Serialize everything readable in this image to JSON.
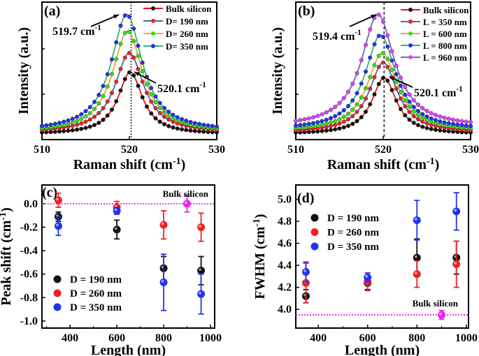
{
  "chart_data": [
    {
      "panel": "(a)",
      "type": "line",
      "xlabel": "Raman shift (cm-1)",
      "ylabel": "Intensity (a.u.)",
      "xlim": [
        510,
        530
      ],
      "ylim": [
        0,
        1
      ],
      "xticks": [
        510,
        520,
        530
      ],
      "yticks_labeled": false,
      "series": [
        {
          "name": "Bulk silicon",
          "center": 520.1,
          "peak": 0.49,
          "base": 0.04,
          "fwhm": 3.4,
          "line": "#e8141b",
          "marker": "#111111"
        },
        {
          "name": "D= 190 nm",
          "center": 520.0,
          "peak": 0.63,
          "base": 0.05,
          "fwhm": 4.0,
          "line": "#3a6fb0",
          "marker": "#ee2222"
        },
        {
          "name": "D= 260 nm",
          "center": 519.8,
          "peak": 0.79,
          "base": 0.05,
          "fwhm": 4.2,
          "line": "#f5a623",
          "marker": "#33dd22"
        },
        {
          "name": "D= 350 nm",
          "center": 519.7,
          "peak": 0.91,
          "base": 0.06,
          "fwhm": 4.3,
          "line": "#3cb371",
          "marker": "#2233ee"
        }
      ],
      "vline": 520.2,
      "annotations": [
        {
          "text": "519.7 cm",
          "sup": "-1"
        },
        {
          "text": "520.1 cm",
          "sup": "-1"
        }
      ]
    },
    {
      "panel": "(b)",
      "type": "line",
      "xlabel": "Raman shift (cm-1)",
      "ylabel": "Intensity (a.u.)",
      "xlim": [
        510,
        530
      ],
      "ylim": [
        0,
        1
      ],
      "xticks": [
        510,
        520,
        530
      ],
      "yticks_labeled": false,
      "series": [
        {
          "name": "Bulk silicon",
          "center": 520.1,
          "peak": 0.45,
          "base": 0.04,
          "fwhm": 3.4,
          "line": "#e8141b",
          "marker": "#111111"
        },
        {
          "name": "L = 350 nm",
          "center": 520.0,
          "peak": 0.56,
          "base": 0.05,
          "fwhm": 3.9,
          "line": "#3a6fb0",
          "marker": "#ee2222"
        },
        {
          "name": "L = 600 nm",
          "center": 519.9,
          "peak": 0.63,
          "base": 0.06,
          "fwhm": 4.2,
          "line": "#f5a623",
          "marker": "#33dd22"
        },
        {
          "name": "L = 800 nm",
          "center": 519.7,
          "peak": 0.76,
          "base": 0.07,
          "fwhm": 4.3,
          "line": "#3cb371",
          "marker": "#2233ee"
        },
        {
          "name": "L = 960 nm",
          "center": 519.4,
          "peak": 0.91,
          "base": 0.09,
          "fwhm": 4.6,
          "line": "#6a6ab0",
          "marker": "#e040fb"
        }
      ],
      "vline": 520.1,
      "annotations": [
        {
          "text": "519.4 cm",
          "sup": "-1"
        },
        {
          "text": "520.1 cm",
          "sup": "-1"
        }
      ]
    },
    {
      "panel": "(c)",
      "type": "scatter",
      "xlabel": "Length (nm)",
      "ylabel": "Peak shift (cm-1)",
      "xlim": [
        280,
        1018
      ],
      "ylim": [
        -1.06,
        0.16
      ],
      "xticks": [
        400,
        600,
        800,
        1000
      ],
      "yticks": [
        0.0,
        -0.2,
        -0.4,
        -0.6,
        -0.8,
        -1.0
      ],
      "ytick_labels": [
        "0.0",
        "-0.2",
        "-0.4",
        "-0.6",
        "-0.8",
        "-1.0"
      ],
      "series": [
        {
          "name": "D = 190 nm",
          "color": "#111111",
          "x": [
            350,
            600,
            800,
            960
          ],
          "y": [
            -0.11,
            -0.22,
            -0.55,
            -0.57
          ],
          "err": [
            0.04,
            0.08,
            0.1,
            0.12
          ]
        },
        {
          "name": "D = 260 nm",
          "color": "#ee2222",
          "x": [
            350,
            600,
            800,
            960
          ],
          "y": [
            0.03,
            -0.03,
            -0.18,
            -0.2
          ],
          "err": [
            0.06,
            0.05,
            0.12,
            0.12
          ]
        },
        {
          "name": "D = 350 nm",
          "color": "#2233ee",
          "x": [
            350,
            600,
            800,
            960
          ],
          "y": [
            -0.19,
            -0.06,
            -0.67,
            -0.77
          ],
          "err": [
            0.08,
            0.03,
            0.24,
            0.17
          ]
        }
      ],
      "bulk": {
        "label": "Bulk silicon",
        "x": 900,
        "y": 0.0,
        "err": 0.07,
        "color": "#ee22ee",
        "hline": 0.0
      }
    },
    {
      "panel": "(d)",
      "type": "scatter",
      "xlabel": "Length (nm)",
      "ylabel": "FWHM (cm-1)",
      "xlim": [
        309,
        1009
      ],
      "ylim": [
        3.83,
        5.13
      ],
      "xticks": [
        400,
        600,
        800,
        1000
      ],
      "yticks": [
        4.0,
        4.2,
        4.4,
        4.6,
        4.8,
        5.0
      ],
      "ytick_labels": [
        "4.0",
        "4.2",
        "4.4",
        "4.6",
        "4.8",
        "5.0"
      ],
      "series": [
        {
          "name": "D = 190 nm",
          "color": "#111111",
          "x": [
            350,
            600,
            800,
            960
          ],
          "y": [
            4.12,
            4.24,
            4.47,
            4.47
          ],
          "err": [
            0.06,
            0.06,
            0.17,
            0.15
          ]
        },
        {
          "name": "D = 260 nm",
          "color": "#ee2222",
          "x": [
            350,
            600,
            800,
            960
          ],
          "y": [
            4.24,
            4.25,
            4.32,
            4.41
          ],
          "err": [
            0.18,
            0.08,
            0.12,
            0.21
          ]
        },
        {
          "name": "D = 350 nm",
          "color": "#2233ee",
          "x": [
            350,
            600,
            800,
            960
          ],
          "y": [
            4.34,
            4.29,
            4.81,
            4.89
          ],
          "err": [
            0.09,
            0.04,
            0.18,
            0.17
          ]
        }
      ],
      "bulk": {
        "label": "Bulk silicon",
        "x": 900,
        "y": 3.95,
        "err": 0.04,
        "color": "#ee22ee",
        "hline": 3.95
      }
    }
  ]
}
